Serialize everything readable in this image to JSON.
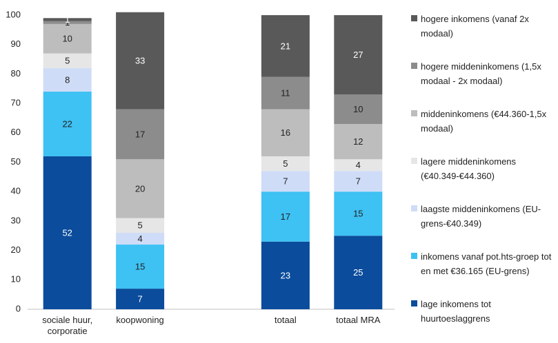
{
  "chart_data": {
    "type": "stacked-bar",
    "categories": [
      "sociale huur, corporatie",
      "koopwoning",
      null,
      "totaal",
      "totaal MRA"
    ],
    "series": [
      {
        "name": "lage inkomens tot huurtoeslaggrens",
        "color": "#0b4c9c",
        "values": [
          52,
          7,
          null,
          23,
          25
        ]
      },
      {
        "name": "inkomens vanaf pot.hts-groep tot en met €36.165 (EU-grens)",
        "color": "#3ec1f3",
        "values": [
          22,
          15,
          null,
          17,
          15
        ]
      },
      {
        "name": "laagste middeninkomens (EU-grens-€40.349)",
        "color": "#cfdcf7",
        "values": [
          8,
          4,
          null,
          7,
          7
        ]
      },
      {
        "name": "lagere middeninkomens (€40.349-€44.360)",
        "color": "#e6e6e6",
        "values": [
          5,
          5,
          null,
          5,
          4
        ]
      },
      {
        "name": "middeninkomens (€44.360-1,5x modaal)",
        "color": "#bdbdbd",
        "values": [
          10,
          20,
          null,
          16,
          12
        ]
      },
      {
        "name": "hogere middeninkomens (1,5x modaal - 2x modaal)",
        "color": "#8c8c8c",
        "values": [
          1,
          17,
          null,
          11,
          10
        ]
      },
      {
        "name": "hogere inkomens (vanaf 2x modaal)",
        "color": "#595959",
        "values": [
          1,
          33,
          null,
          21,
          27
        ]
      }
    ],
    "ylim": [
      0,
      100
    ],
    "yticks": [
      0,
      10,
      20,
      30,
      40,
      50,
      60,
      70,
      80,
      90,
      100
    ],
    "legend": "right"
  }
}
